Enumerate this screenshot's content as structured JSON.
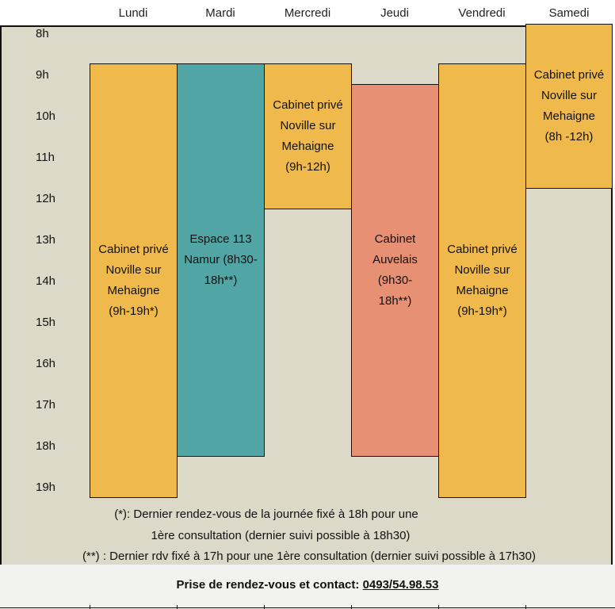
{
  "days": [
    "Lundi",
    "Mardi",
    "Mercredi",
    "Jeudi",
    "Vendredi",
    "Samedi"
  ],
  "hours": [
    "8h",
    "9h",
    "10h",
    "11h",
    "12h",
    "13h",
    "14h",
    "15h",
    "16h",
    "17h",
    "18h",
    "19h"
  ],
  "blocks": {
    "lundi": "Cabinet privé\nNoville sur\nMehaigne\n(9h-19h*)",
    "mardi": "Espace 113\nNamur (8h30-\n18h**)",
    "mercredi": "Cabinet privé\nNoville sur\nMehaigne\n(9h-12h)",
    "jeudi": "Cabinet\nAuvelais\n(9h30-\n18h**)",
    "vendredi": "Cabinet privé\nNoville sur\nMehaigne\n(9h-19h*)",
    "samedi": "Cabinet privé\nNoville sur\nMehaigne\n(8h -12h)"
  },
  "colors": {
    "panel": "#ddd9c8",
    "gold": "#f0b94b",
    "teal": "#52a5a5",
    "salmon": "#e89074"
  },
  "notes": {
    "note1_line1": "(*): Dernier rendez-vous de la journée fixé à 18h pour une",
    "note1_line2": "1ère consultation (dernier suivi possible à 18h30)",
    "note2": "(**) : Dernier rdv fixé à 17h pour une 1ère consultation (dernier suivi possible à 17h30)"
  },
  "contact": {
    "label": "Prise de rendez-vous et contact: ",
    "phone": "0493/54.98.53"
  }
}
